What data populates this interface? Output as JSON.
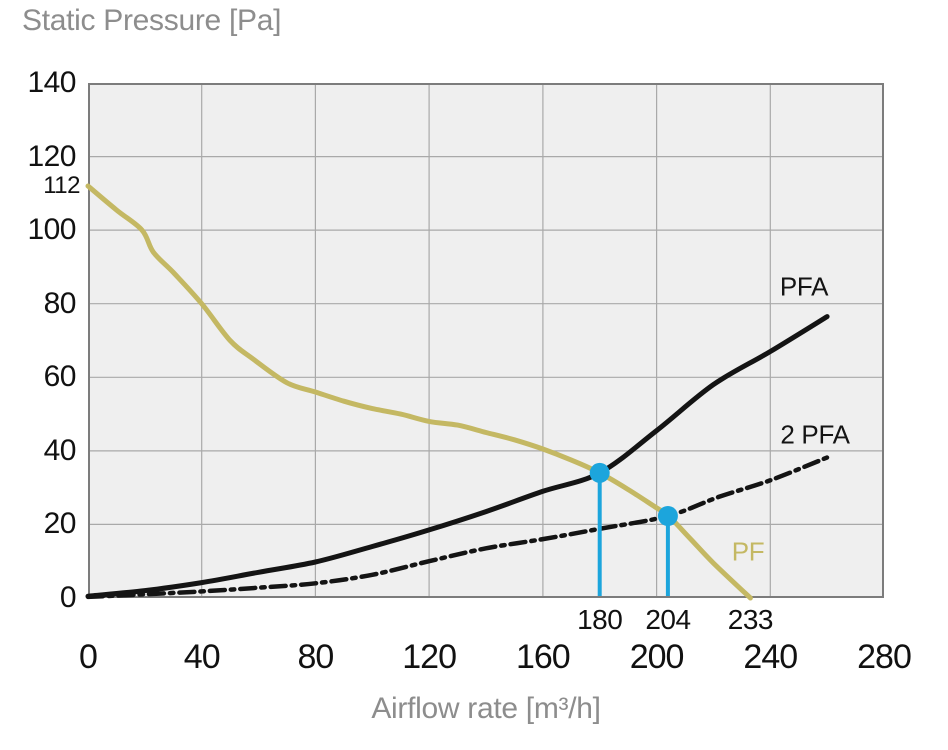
{
  "chart_data": {
    "type": "line",
    "y_axis_title": "Static Pressure [Pa]",
    "x_axis_title": "Airflow rate [m³/h]",
    "xlim": [
      0,
      280
    ],
    "ylim": [
      0,
      140
    ],
    "x_ticks": [
      0,
      40,
      80,
      120,
      160,
      200,
      240,
      280
    ],
    "y_ticks": [
      0,
      20,
      40,
      60,
      80,
      100,
      120,
      140
    ],
    "extra_y_label": {
      "value": 112,
      "label": "112"
    },
    "grid": true,
    "legend_position": "labels-on-curves",
    "series": [
      {
        "name": "PF",
        "color": "#c4b863",
        "style": "solid",
        "points": [
          [
            0,
            112
          ],
          [
            10,
            105.5
          ],
          [
            19,
            100
          ],
          [
            23,
            94
          ],
          [
            30,
            88.5
          ],
          [
            40,
            80
          ],
          [
            50,
            70
          ],
          [
            58,
            65
          ],
          [
            70,
            58.5
          ],
          [
            80,
            56
          ],
          [
            90,
            53.5
          ],
          [
            100,
            51.5
          ],
          [
            110,
            50
          ],
          [
            120,
            48
          ],
          [
            130,
            47
          ],
          [
            140,
            45
          ],
          [
            150,
            43
          ],
          [
            160,
            40.5
          ],
          [
            170,
            37.5
          ],
          [
            180,
            34
          ],
          [
            190,
            29.5
          ],
          [
            200,
            24.5
          ],
          [
            204,
            22.5
          ],
          [
            212,
            16
          ],
          [
            220,
            9.5
          ],
          [
            233,
            0
          ]
        ]
      },
      {
        "name": "PFA",
        "color": "#141414",
        "style": "solid",
        "points": [
          [
            0,
            0.5
          ],
          [
            20,
            2
          ],
          [
            40,
            4.2
          ],
          [
            60,
            7
          ],
          [
            80,
            9.8
          ],
          [
            100,
            14
          ],
          [
            120,
            18.5
          ],
          [
            140,
            23.5
          ],
          [
            160,
            29
          ],
          [
            180,
            34
          ],
          [
            200,
            45.5
          ],
          [
            220,
            58
          ],
          [
            240,
            67
          ],
          [
            260,
            76.5
          ]
        ]
      },
      {
        "name": "2 PFA",
        "color": "#141414",
        "style": "dashdot",
        "points": [
          [
            0,
            0.3
          ],
          [
            20,
            1
          ],
          [
            40,
            1.8
          ],
          [
            60,
            2.8
          ],
          [
            80,
            4
          ],
          [
            100,
            6.3
          ],
          [
            120,
            10
          ],
          [
            140,
            13.5
          ],
          [
            160,
            16
          ],
          [
            180,
            18.8
          ],
          [
            204,
            22.3
          ],
          [
            222,
            27.5
          ],
          [
            240,
            32
          ],
          [
            260,
            38.2
          ]
        ]
      }
    ],
    "operating_points": [
      {
        "x": 180,
        "y": 34,
        "label": "180"
      },
      {
        "x": 204,
        "y": 22.3,
        "label": "204"
      }
    ],
    "axis_annotations": [
      {
        "x": 180,
        "label": "180"
      },
      {
        "x": 204,
        "label": "204"
      },
      {
        "x": 233,
        "label": "233"
      }
    ],
    "marker_color": "#1ca5dc"
  },
  "labels": {
    "pfa": "PFA",
    "pfa2": "2 PFA",
    "pf": "PF"
  },
  "colors": {
    "plot_background": "#efefef",
    "grid": "#a9a9a9",
    "plot_border": "#7c7c7c",
    "axis_title_gray": "#8d8d8d",
    "tick_text": "#111111",
    "pf_curve": "#c4b863",
    "black_curve": "#141414",
    "marker_blue": "#1ca5dc"
  }
}
